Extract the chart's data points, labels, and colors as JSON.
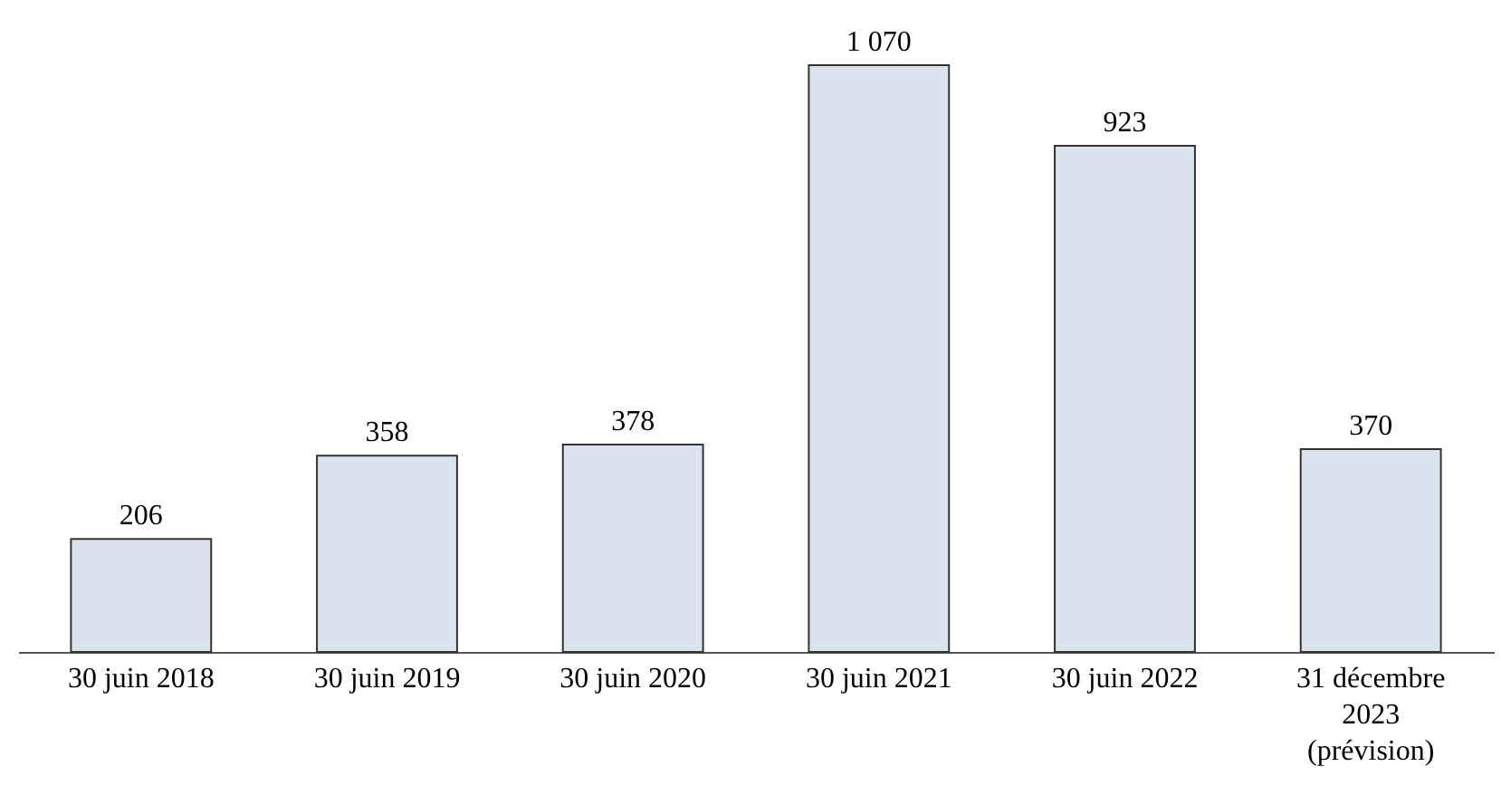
{
  "chart_data": {
    "type": "bar",
    "categories": [
      "30 juin 2018",
      "30 juin 2019",
      "30 juin 2020",
      "30 juin 2021",
      "30 juin 2022",
      "31 décembre 2023 (prévision)"
    ],
    "values": [
      206,
      358,
      378,
      1070,
      923,
      370
    ],
    "value_labels": [
      "206",
      "358",
      "378",
      "1 070",
      "923",
      "370"
    ],
    "color": "#dce3ef",
    "grid": false
  }
}
